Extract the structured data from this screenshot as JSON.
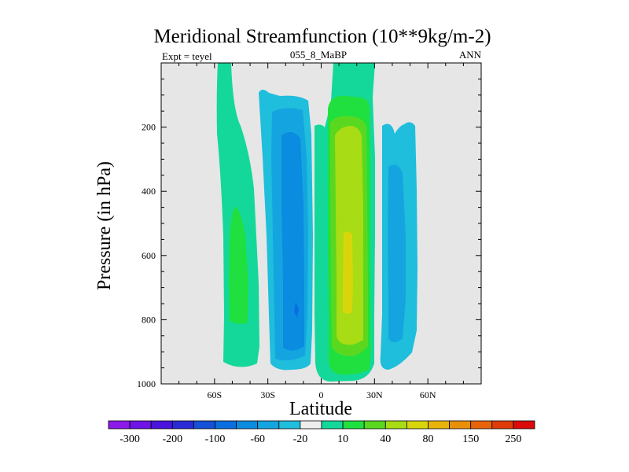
{
  "chart_data": {
    "type": "contour",
    "title": "Meridional Streamfunction (10**9kg/m-2)",
    "subtitle_left": "Expt = teyel",
    "subtitle_center": "055_8_MaBP",
    "subtitle_right": "ANN",
    "xlabel": "Latitude",
    "ylabel": "Pressure (in hPa)",
    "xlim": [
      -90,
      90
    ],
    "ylim": [
      1000,
      0
    ],
    "x_ticks": [
      {
        "value": -60,
        "label": "60S"
      },
      {
        "value": -30,
        "label": "30S"
      },
      {
        "value": 0,
        "label": "0"
      },
      {
        "value": 30,
        "label": "30N"
      },
      {
        "value": 60,
        "label": "60N"
      }
    ],
    "y_ticks": [
      {
        "value": 200,
        "label": "200"
      },
      {
        "value": 400,
        "label": "400"
      },
      {
        "value": 600,
        "label": "600"
      },
      {
        "value": 800,
        "label": "800"
      },
      {
        "value": 1000,
        "label": "1000"
      }
    ],
    "colorbar": {
      "labels": [
        "-300",
        "-200",
        "-100",
        "-60",
        "-20",
        "10",
        "40",
        "80",
        "150",
        "250"
      ],
      "colors": [
        "#8c1aeb",
        "#6e14e6",
        "#4a14dc",
        "#2a2ad8",
        "#1450d8",
        "#0a6ee0",
        "#0a8ce0",
        "#14a5e0",
        "#1ebedc",
        "#eeeeee",
        "#14d89a",
        "#20e040",
        "#5ad820",
        "#a8dc14",
        "#d8d60a",
        "#e8b40a",
        "#e8900a",
        "#e8640a",
        "#e03c0a",
        "#dc0a0a"
      ]
    },
    "background_color": "#e6e6e6",
    "cells": [
      {
        "name": "cell-sh-polar-direct",
        "sign": "positive",
        "max": 40,
        "lat_range": [
          -57,
          -38
        ],
        "p_range": [
          0,
          960
        ]
      },
      {
        "name": "cell-sh-ferrel",
        "sign": "negative",
        "min": -100,
        "lat_range": [
          -34,
          -7
        ],
        "p_range": [
          70,
          970
        ]
      },
      {
        "name": "cell-hadley",
        "sign": "positive",
        "max": 150,
        "lat_range": [
          -2,
          30
        ],
        "p_range": [
          0,
          985
        ]
      },
      {
        "name": "cell-nh-ferrel",
        "sign": "negative",
        "min": -60,
        "lat_range": [
          33,
          51
        ],
        "p_range": [
          180,
          960
        ]
      }
    ]
  }
}
